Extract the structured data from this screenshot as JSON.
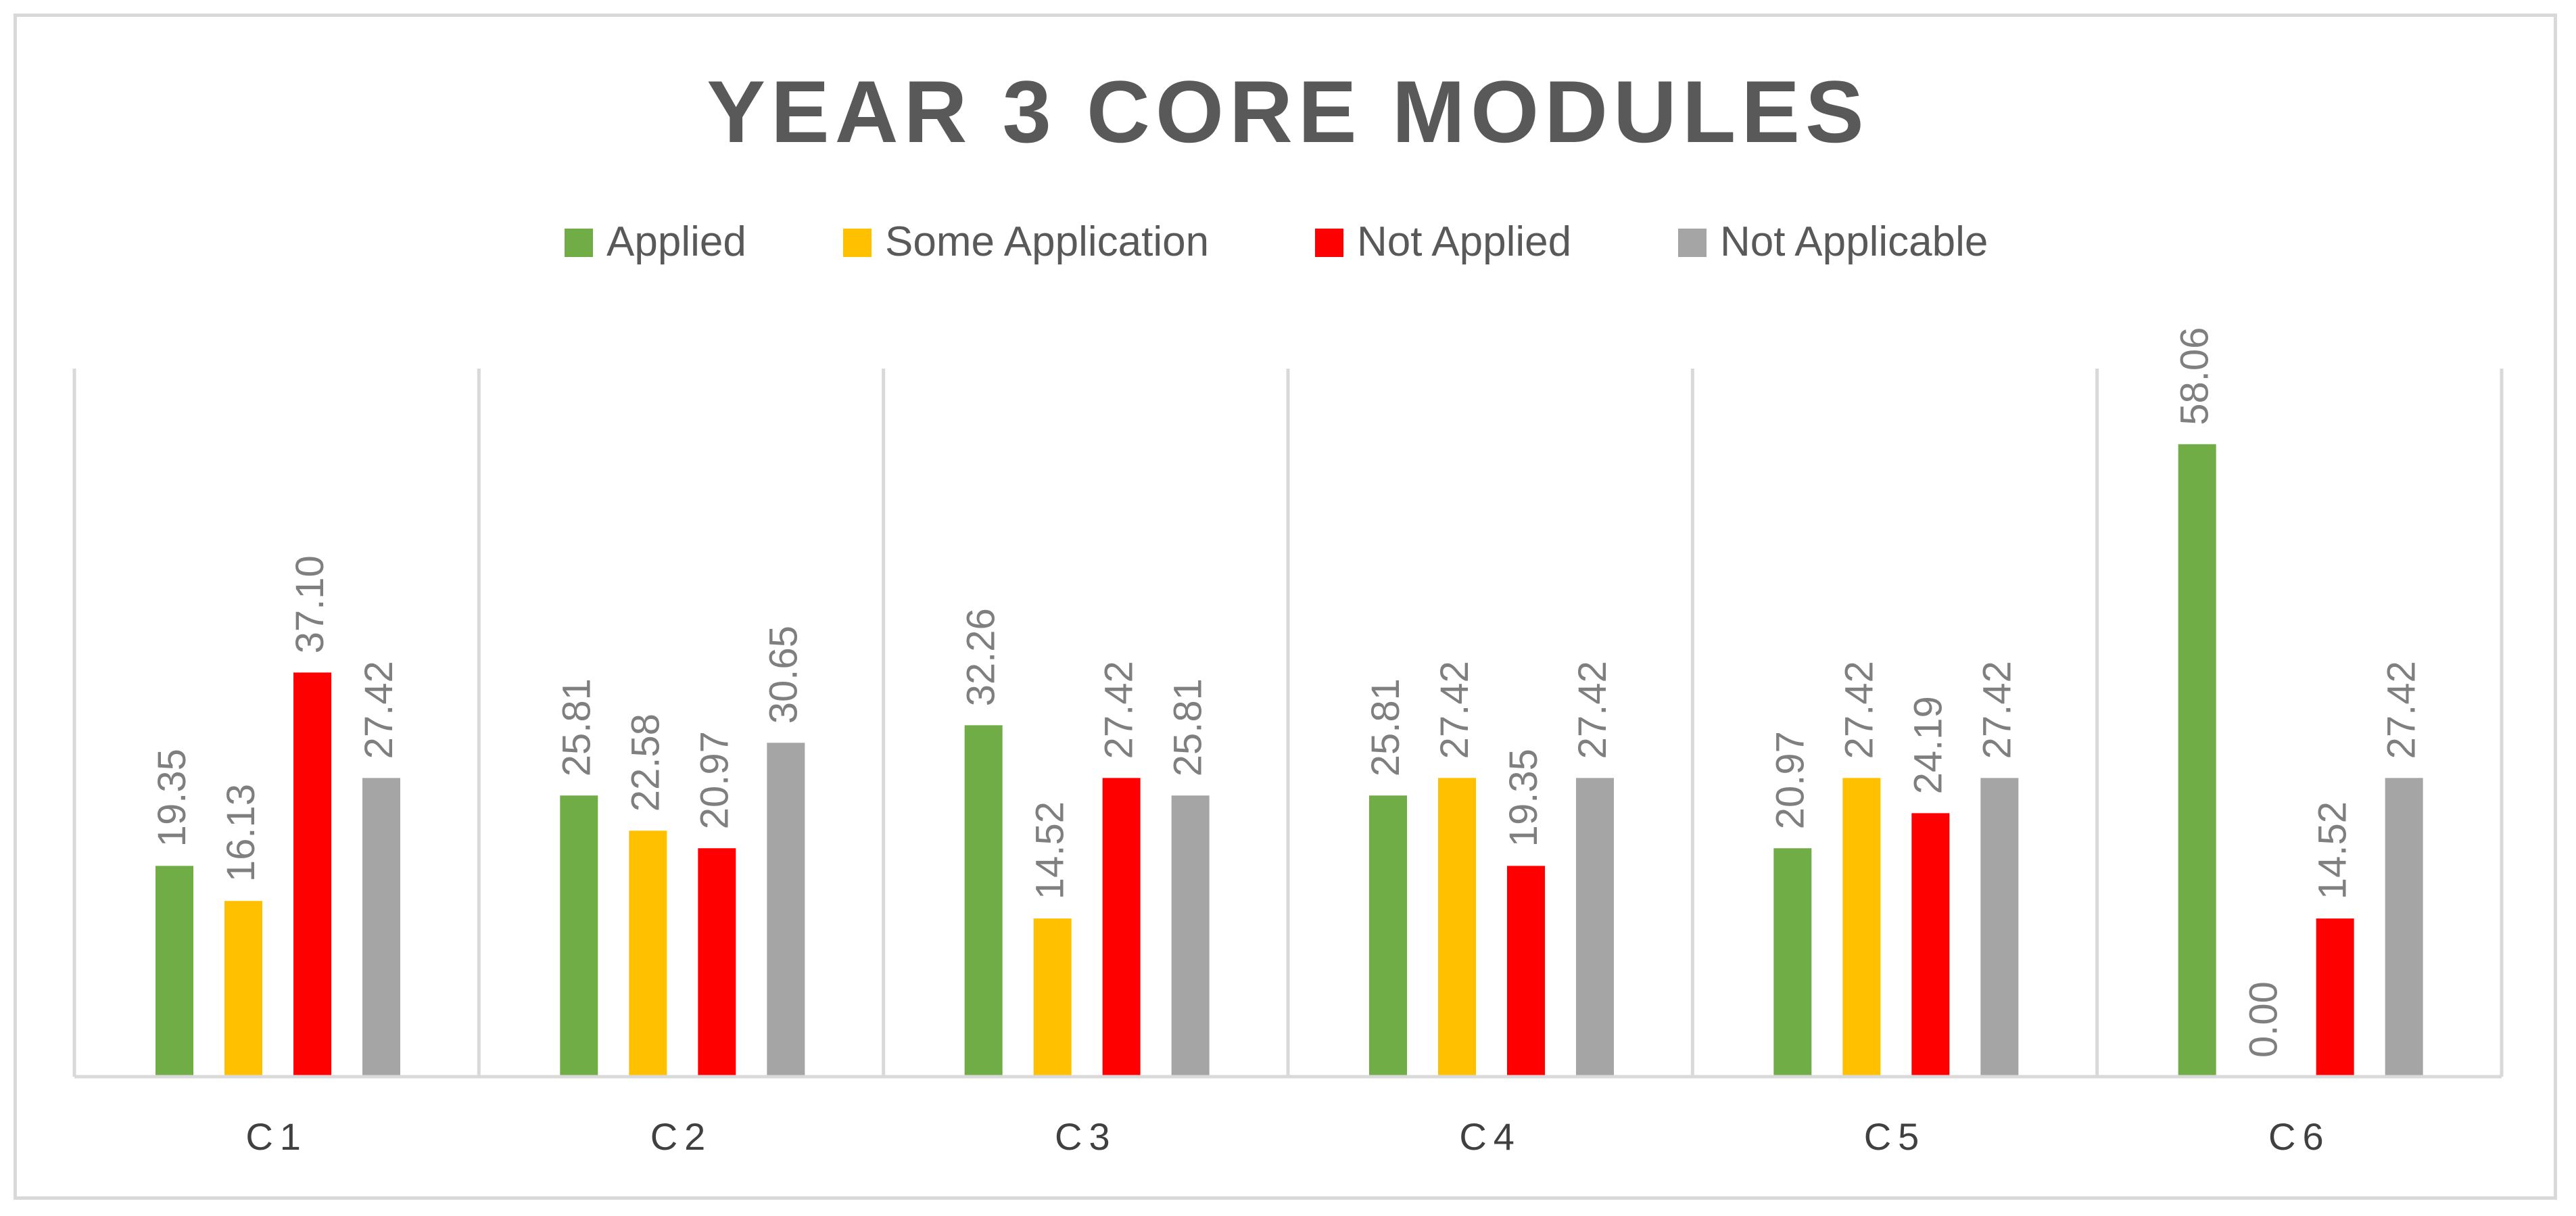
{
  "chart_data": {
    "type": "bar",
    "title": "YEAR 3 CORE MODULES",
    "categories": [
      "C1",
      "C2",
      "C3",
      "C4",
      "C5",
      "C6"
    ],
    "series": [
      {
        "name": "Applied",
        "color": "#70ad47",
        "values": [
          19.35,
          25.81,
          32.26,
          25.81,
          20.97,
          58.06
        ]
      },
      {
        "name": "Some Application",
        "color": "#ffc000",
        "values": [
          16.13,
          22.58,
          14.52,
          27.42,
          27.42,
          0.0
        ]
      },
      {
        "name": "Not Applied",
        "color": "#ff0000",
        "values": [
          37.1,
          20.97,
          27.42,
          19.35,
          24.19,
          14.52
        ]
      },
      {
        "name": "Not Applicable",
        "color": "#a5a5a5",
        "values": [
          27.42,
          30.65,
          25.81,
          27.42,
          27.42,
          27.42
        ]
      }
    ],
    "xlabel": "",
    "ylabel": "",
    "ylim": [
      0,
      65
    ],
    "grid": "vertical category separators",
    "legend": "top-center",
    "data_labels": "rotated, above bars, 2 decimals"
  }
}
